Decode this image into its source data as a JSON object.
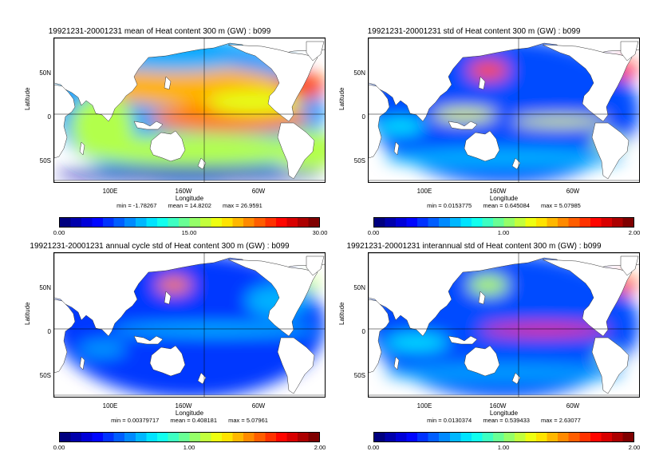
{
  "colorbar_colors": [
    "#00007f",
    "#0000ff",
    "#007fff",
    "#00ffff",
    "#7fff7f",
    "#ffff00",
    "#ff7f00",
    "#ff0000",
    "#7f0000"
  ],
  "land_color": "#ffffff",
  "panels": [
    {
      "title": "19921231-20001231 mean of Heat content 300 m (GW) : b099",
      "ylabel": "Latitude",
      "xlabel": "Longitude",
      "lat_ticks": [
        "50N",
        "0",
        "50S"
      ],
      "lon_ticks": [
        "100E",
        "160W",
        "60W"
      ],
      "stats": {
        "min": "min = -1.78267",
        "mean": "mean = 14.8202",
        "max": "max = 26.9591"
      },
      "colorbar_ticks": [
        "0.00",
        "15.00",
        "30.00"
      ],
      "field": "mean"
    },
    {
      "title": "19921231-20001231 std of Heat content 300 m (GW) : b099",
      "ylabel": "Latitude",
      "xlabel": "Longitude",
      "lat_ticks": [
        "50N",
        "0",
        "50S"
      ],
      "lon_ticks": [
        "100E",
        "160W",
        "60W"
      ],
      "stats": {
        "min": "min = 0.0153775",
        "mean": "mean = 0.645084",
        "max": "max = 5.07985"
      },
      "colorbar_ticks": [
        "0.00",
        "1.00",
        "2.00"
      ],
      "field": "std"
    },
    {
      "title": "19921231-20001231 annual cycle std of Heat content 300 m (GW) : b099",
      "ylabel": "Latitude",
      "xlabel": "Longitude",
      "lat_ticks": [
        "50N",
        "0",
        "50S"
      ],
      "lon_ticks": [
        "100E",
        "160W",
        "60W"
      ],
      "stats": {
        "min": "min = 0.00379717",
        "mean": "mean = 0.408181",
        "max": "max = 5.07961"
      },
      "colorbar_ticks": [
        "0.00",
        "1.00",
        "2.00"
      ],
      "field": "annual"
    },
    {
      "title": "19921231-20001231 interannual std of Heat content 300 m (GW) : b099",
      "ylabel": "Latitude",
      "xlabel": "Longitude",
      "lat_ticks": [
        "50N",
        "0",
        "50S"
      ],
      "lon_ticks": [
        "100E",
        "160W",
        "60W"
      ],
      "stats": {
        "min": "min = 0.0130374",
        "mean": "mean = 0.539433",
        "max": "max = 2.63077"
      },
      "colorbar_ticks": [
        "0.00",
        "1.00",
        "2.00"
      ],
      "field": "inter"
    }
  ]
}
